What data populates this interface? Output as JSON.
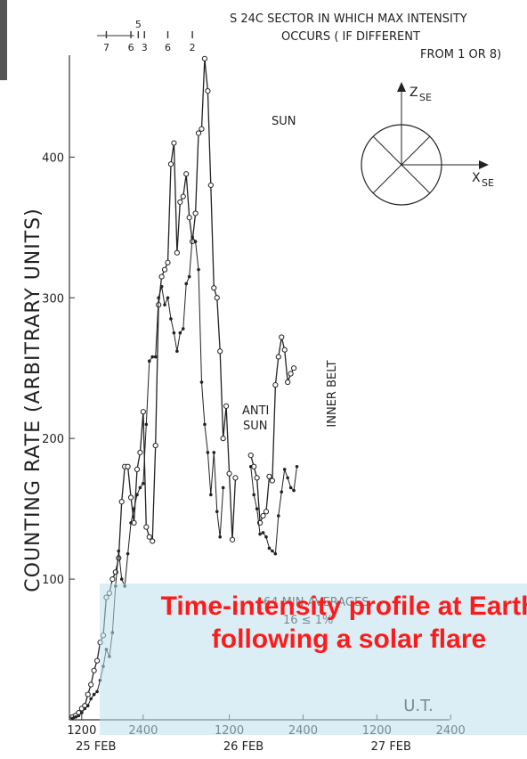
{
  "chart_data": {
    "type": "line",
    "ylabel": "COUNTING RATE (ARBITRARY UNITS)",
    "ylim": [
      0,
      480
    ],
    "yticks": [
      100,
      200,
      300,
      400
    ],
    "xlim": [
      0,
      64
    ],
    "xtick_labels": [
      "1200",
      "2400",
      "1200",
      "2400",
      "1200",
      "2400"
    ],
    "xtick_positions": [
      2,
      12,
      26,
      38,
      50,
      62
    ],
    "date_labels": [
      "25 FEB",
      "26 FEB",
      "27 FEB"
    ],
    "date_label_positions": [
      2,
      26,
      50
    ],
    "xunit": "U.T.",
    "header_lines": [
      "S 24C SECTOR IN WHICH MAX INTENSITY",
      "OCCURS ( IF DIFFERENT",
      "FROM 1 OR 8)"
    ],
    "sector_marks": [
      {
        "x": 6,
        "label": "7"
      },
      {
        "x": 10,
        "label": "6"
      },
      {
        "x": 11.2,
        "label": "5"
      },
      {
        "x": 12.2,
        "label": "3"
      },
      {
        "x": 16,
        "label": "6"
      },
      {
        "x": 20,
        "label": "2"
      }
    ],
    "annotations": {
      "sun": "SUN",
      "anti_sun": "ANTI\nSUN",
      "inner_belt": "INNER BELT",
      "averages_line1": "64 MIN AVERAGES",
      "averages_line2": "16 ≤ 1%",
      "z_axis": "Z",
      "z_sub": "SE",
      "x_axis": "X",
      "x_sub": "SE"
    },
    "series": [
      {
        "name": "SUN",
        "marker": "open-circle",
        "segments": [
          [
            [
              0.5,
              2
            ],
            [
              1,
              3
            ],
            [
              1.5,
              5
            ],
            [
              2,
              8
            ],
            [
              2.5,
              10
            ],
            [
              3,
              18
            ],
            [
              3.5,
              25
            ],
            [
              4,
              35
            ],
            [
              4.5,
              42
            ],
            [
              5,
              55
            ],
            [
              5.5,
              60
            ],
            [
              6,
              87
            ],
            [
              6.5,
              90
            ],
            [
              7,
              100
            ],
            [
              7.5,
              105
            ],
            [
              8,
              115
            ],
            [
              8.5,
              155
            ],
            [
              9,
              180
            ],
            [
              9.5,
              180
            ],
            [
              10,
              158
            ],
            [
              10.5,
              140
            ],
            [
              11,
              178
            ],
            [
              11.5,
              190
            ],
            [
              12,
              219
            ],
            [
              12.5,
              137
            ],
            [
              13,
              130
            ],
            [
              13.5,
              127
            ],
            [
              14,
              195
            ],
            [
              14.5,
              295
            ],
            [
              15,
              315
            ],
            [
              15.5,
              320
            ],
            [
              16,
              325
            ],
            [
              16.5,
              395
            ],
            [
              17,
              410
            ],
            [
              17.5,
              332
            ],
            [
              18,
              368
            ],
            [
              18.5,
              372
            ],
            [
              19,
              388
            ],
            [
              19.5,
              357
            ],
            [
              20,
              340
            ],
            [
              20.5,
              360
            ],
            [
              21,
              417
            ],
            [
              21.5,
              420
            ],
            [
              22,
              470
            ],
            [
              22.5,
              447
            ],
            [
              23,
              380
            ],
            [
              23.5,
              307
            ],
            [
              24,
              300
            ],
            [
              24.5,
              262
            ],
            [
              25,
              200
            ],
            [
              25.5,
              223
            ],
            [
              26,
              175
            ],
            [
              26.5,
              128
            ],
            [
              27,
              172
            ]
          ],
          [
            [
              29.5,
              188
            ],
            [
              30,
              180
            ],
            [
              30.5,
              172
            ],
            [
              31,
              140
            ],
            [
              31.5,
              145
            ],
            [
              32,
              148
            ],
            [
              32.5,
              173
            ],
            [
              33,
              170
            ],
            [
              33.5,
              238
            ],
            [
              34,
              258
            ],
            [
              34.5,
              272
            ],
            [
              35,
              263
            ],
            [
              35.5,
              240
            ],
            [
              36,
              246
            ],
            [
              36.5,
              250
            ]
          ]
        ]
      },
      {
        "name": "ANTI SUN",
        "marker": "dot",
        "segments": [
          [
            [
              0.5,
              1
            ],
            [
              1,
              2
            ],
            [
              1.5,
              3
            ],
            [
              2,
              5
            ],
            [
              2.5,
              8
            ],
            [
              3,
              10
            ],
            [
              3.5,
              15
            ],
            [
              4,
              18
            ],
            [
              4.5,
              20
            ],
            [
              5,
              28
            ],
            [
              5.5,
              38
            ],
            [
              6,
              50
            ],
            [
              6.5,
              45
            ],
            [
              7,
              62
            ],
            [
              7.5,
              95
            ],
            [
              8,
              120
            ],
            [
              8.5,
              100
            ],
            [
              9,
              95
            ],
            [
              9.5,
              118
            ],
            [
              10,
              140
            ],
            [
              10.5,
              150
            ],
            [
              11,
              160
            ],
            [
              11.5,
              165
            ],
            [
              12,
              168
            ],
            [
              12.5,
              210
            ],
            [
              13,
              255
            ],
            [
              13.5,
              258
            ],
            [
              14,
              258
            ],
            [
              14.5,
              300
            ],
            [
              15,
              308
            ],
            [
              15.5,
              295
            ],
            [
              16,
              300
            ],
            [
              16.5,
              285
            ],
            [
              17,
              275
            ],
            [
              17.5,
              262
            ],
            [
              18,
              275
            ],
            [
              18.5,
              278
            ],
            [
              19,
              310
            ],
            [
              19.5,
              315
            ],
            [
              20,
              343
            ],
            [
              20.5,
              340
            ],
            [
              21,
              320
            ],
            [
              21.5,
              240
            ],
            [
              22,
              210
            ],
            [
              22.5,
              190
            ],
            [
              23,
              160
            ],
            [
              23.5,
              190
            ],
            [
              24,
              148
            ],
            [
              24.5,
              130
            ],
            [
              25,
              165
            ]
          ],
          [
            [
              29.5,
              180
            ],
            [
              30,
              160
            ],
            [
              30.5,
              150
            ],
            [
              31,
              132
            ],
            [
              31.5,
              133
            ],
            [
              32,
              130
            ],
            [
              32.5,
              122
            ],
            [
              33,
              120
            ],
            [
              33.5,
              118
            ],
            [
              34,
              145
            ],
            [
              34.5,
              162
            ],
            [
              35,
              178
            ],
            [
              35.5,
              172
            ],
            [
              36,
              165
            ],
            [
              36.5,
              163
            ],
            [
              37,
              180
            ]
          ]
        ]
      }
    ]
  },
  "caption": "Time-intensity profile at Earth following a solar flare"
}
